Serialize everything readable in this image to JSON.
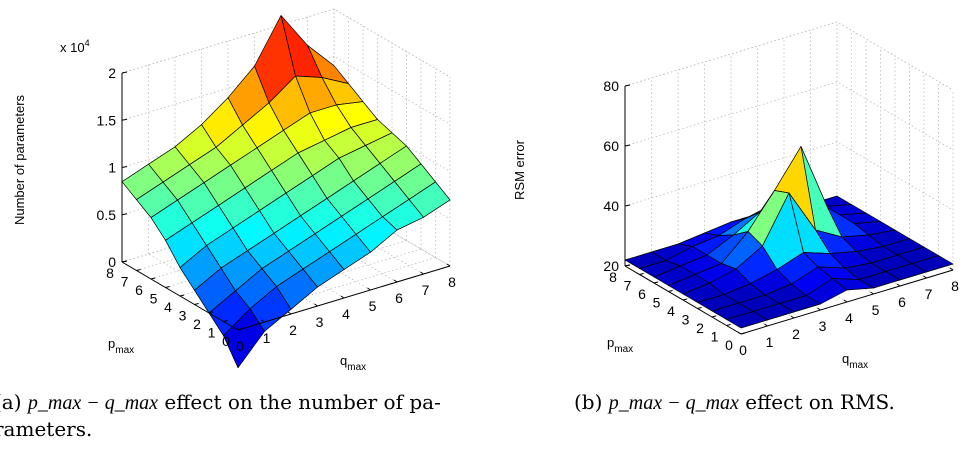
{
  "chart_data": [
    {
      "type": "surface",
      "zlabel": "Number of parameters",
      "xlabel_base": "q",
      "xlabel_sub": "max",
      "ylabel_base": "p",
      "ylabel_sub": "max",
      "exponent_label": "x 10",
      "exponent_power": "4",
      "xticks": [
        "0",
        "1",
        "2",
        "3",
        "4",
        "5",
        "6",
        "7",
        "8"
      ],
      "yticks": [
        "0",
        "1",
        "2",
        "3",
        "4",
        "5",
        "6",
        "7",
        "8"
      ],
      "zticks": [
        "0",
        "0.5",
        "1",
        "1.5",
        "2"
      ],
      "zlim": [
        0,
        2
      ],
      "colormap": "jet",
      "grid": true,
      "z": [
        [
          -0.4,
          -0.1,
          0.05,
          0.2,
          0.3,
          0.4,
          0.55,
          0.6,
          0.7
        ],
        [
          -0.15,
          0.05,
          0.2,
          0.3,
          0.4,
          0.5,
          0.6,
          0.7,
          0.8
        ],
        [
          0.0,
          0.15,
          0.3,
          0.4,
          0.5,
          0.6,
          0.7,
          0.8,
          0.9
        ],
        [
          0.15,
          0.3,
          0.4,
          0.5,
          0.6,
          0.7,
          0.8,
          0.9,
          1.0
        ],
        [
          0.3,
          0.45,
          0.55,
          0.65,
          0.75,
          0.85,
          0.95,
          1.0,
          1.05
        ],
        [
          0.5,
          0.6,
          0.7,
          0.8,
          0.9,
          1.0,
          1.05,
          1.1,
          1.1
        ],
        [
          0.65,
          0.75,
          0.85,
          0.95,
          1.05,
          1.15,
          1.25,
          1.25,
          1.2
        ],
        [
          0.75,
          0.85,
          0.95,
          1.05,
          1.2,
          1.35,
          1.55,
          1.45,
          1.3
        ],
        [
          0.85,
          0.95,
          1.05,
          1.2,
          1.4,
          1.65,
          2.1,
          1.7,
          1.4
        ]
      ]
    },
    {
      "type": "surface",
      "zlabel": "RSM error",
      "xlabel_base": "q",
      "xlabel_sub": "max",
      "ylabel_base": "p",
      "ylabel_sub": "max",
      "xticks": [
        "0",
        "1",
        "2",
        "3",
        "4",
        "5",
        "6",
        "7",
        "8"
      ],
      "yticks": [
        "0",
        "1",
        "2",
        "3",
        "4",
        "5",
        "6",
        "7",
        "8"
      ],
      "zticks": [
        "20",
        "40",
        "60",
        "80"
      ],
      "zlim": [
        20,
        80
      ],
      "colormap": "jet",
      "grid": true,
      "z": [
        [
          22,
          22,
          22,
          22,
          24,
          22,
          22,
          22,
          22
        ],
        [
          22,
          22,
          22,
          22,
          25,
          22,
          22,
          22,
          22
        ],
        [
          22,
          22,
          22,
          23,
          26,
          23,
          22,
          22,
          22
        ],
        [
          22,
          22,
          23,
          25,
          28,
          25,
          23,
          22,
          22
        ],
        [
          22,
          23,
          25,
          30,
          45,
          30,
          25,
          23,
          22
        ],
        [
          22,
          23,
          24,
          32,
          43,
          55,
          32,
          24,
          22
        ],
        [
          22,
          23,
          24,
          28,
          33,
          38,
          28,
          24,
          22
        ],
        [
          22,
          22,
          24,
          25,
          28,
          30,
          26,
          24,
          22
        ],
        [
          22,
          22,
          22,
          23,
          24,
          24,
          23,
          22,
          22
        ]
      ]
    }
  ],
  "captions": {
    "a_prefix": "(a) ",
    "a_math": "p_max − q_max",
    "a_text": " effect on the number of pa-",
    "a_text2": "rameters.",
    "b_prefix": "(b) ",
    "b_math": "p_max − q_max",
    "b_text": " effect on RMS."
  }
}
